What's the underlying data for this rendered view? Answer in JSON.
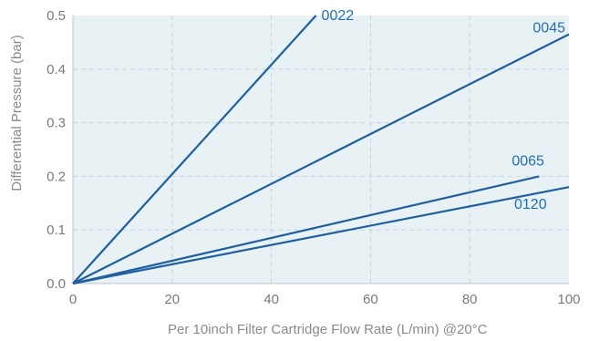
{
  "chart_data": {
    "type": "line",
    "title": "",
    "xlabel": "Per 10inch Filter Cartridge Flow Rate (L/min) @20°C",
    "ylabel": "Differential Pressure (bar)",
    "xlim": [
      0,
      100
    ],
    "ylim": [
      0,
      0.5
    ],
    "xticks": [
      0,
      20,
      40,
      60,
      80,
      100
    ],
    "yticks": [
      0.0,
      0.1,
      0.2,
      0.3,
      0.4,
      0.5
    ],
    "xtick_labels": [
      "0",
      "20",
      "40",
      "60",
      "80",
      "100"
    ],
    "ytick_labels": [
      "0.0",
      "0.1",
      "0.2",
      "0.3",
      "0.4",
      "0.5"
    ],
    "grid": true,
    "legend": "inline-labels",
    "colors": {
      "plot_bg": "#e8f1f4",
      "line": "#1f5fa0",
      "label": "#1f6fb5",
      "grid": "#c5d4de"
    },
    "series": [
      {
        "name": "0022",
        "x": [
          0,
          49
        ],
        "y": [
          0,
          0.5
        ]
      },
      {
        "name": "0045",
        "x": [
          0,
          100
        ],
        "y": [
          0,
          0.465
        ]
      },
      {
        "name": "0065",
        "x": [
          0,
          94
        ],
        "y": [
          0,
          0.2
        ]
      },
      {
        "name": "0120",
        "x": [
          0,
          100
        ],
        "y": [
          0,
          0.18
        ]
      }
    ]
  }
}
